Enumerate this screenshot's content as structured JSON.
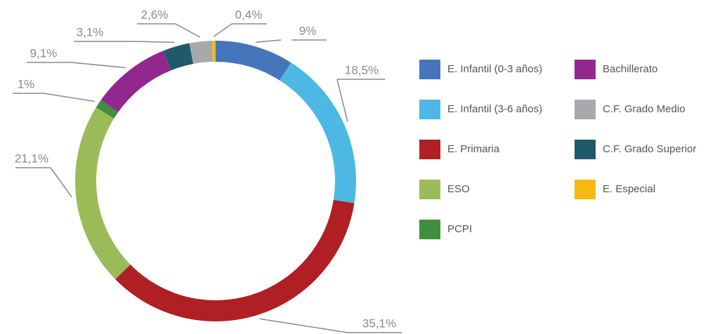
{
  "chart_data": {
    "type": "donut",
    "categories": [
      "E. Infantil (0-3 años)",
      "E. Infantil (3-6 años)",
      "E. Primaria",
      "ESO",
      "PCPI",
      "Bachillerato",
      "C.F. Grado Superior",
      "C.F. Grado Medio",
      "E. Especial"
    ],
    "values": [
      9,
      18.5,
      35.1,
      21.1,
      1,
      9.1,
      3.1,
      2.6,
      0.4
    ],
    "value_labels": [
      "9%",
      "18,5%",
      "35,1%",
      "21,1%",
      "1%",
      "9,1%",
      "3,1%",
      "2,6%",
      "0,4%"
    ],
    "colors": [
      "#4575bb",
      "#4db8e4",
      "#b01f24",
      "#9bbb59",
      "#3f8f3f",
      "#92278f",
      "#1f5a6b",
      "#a7a9ac",
      "#f6b813"
    ],
    "legend": true
  }
}
